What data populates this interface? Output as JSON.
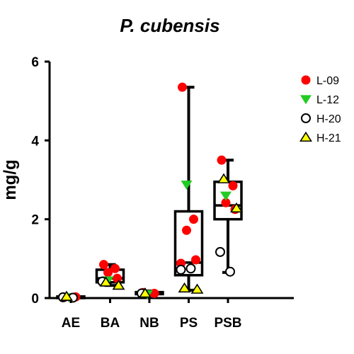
{
  "chart_data": {
    "type": "scatter",
    "subtype": "box-and-scatter",
    "title": "P. cubensis",
    "xlabel": "",
    "ylabel": "mg/g",
    "ylim": [
      0,
      6
    ],
    "yticks": [
      0,
      2,
      4,
      6
    ],
    "categories": [
      "AE",
      "BA",
      "NB",
      "PS",
      "PSB"
    ],
    "legend_position": "right",
    "grid": false,
    "colors": {
      "L-09": "#ff0000",
      "L-12": "#22cc22",
      "H-20": "#ffffff",
      "H-21": "#ffff00"
    },
    "boxes": [
      {
        "category": "AE",
        "min": 0.0,
        "q1": 0.0,
        "median": 0.02,
        "q3": 0.04,
        "max": 0.06
      },
      {
        "category": "BA",
        "min": 0.32,
        "q1": 0.4,
        "median": 0.5,
        "q3": 0.72,
        "max": 0.85
      },
      {
        "category": "NB",
        "min": 0.08,
        "q1": 0.1,
        "median": 0.12,
        "q3": 0.15,
        "max": 0.18
      },
      {
        "category": "PS",
        "min": 0.2,
        "q1": 0.58,
        "median": 0.9,
        "q3": 2.2,
        "max": 5.35
      },
      {
        "category": "PSB",
        "min": 0.65,
        "q1": 2.0,
        "median": 2.35,
        "q3": 2.95,
        "max": 3.5
      }
    ],
    "series": [
      {
        "name": "L-09",
        "marker": "circle",
        "points": [
          {
            "x": "AE",
            "y": 0.02
          },
          {
            "x": "AE",
            "y": 0.03
          },
          {
            "x": "BA",
            "y": 0.85
          },
          {
            "x": "BA",
            "y": 0.75
          },
          {
            "x": "BA",
            "y": 0.65
          },
          {
            "x": "BA",
            "y": 0.5
          },
          {
            "x": "NB",
            "y": 0.14
          },
          {
            "x": "NB",
            "y": 0.12
          },
          {
            "x": "PS",
            "y": 5.35
          },
          {
            "x": "PS",
            "y": 2.0
          },
          {
            "x": "PS",
            "y": 1.72
          },
          {
            "x": "PS",
            "y": 0.97
          },
          {
            "x": "PS",
            "y": 0.88
          },
          {
            "x": "PSB",
            "y": 3.5
          },
          {
            "x": "PSB",
            "y": 2.85
          },
          {
            "x": "PSB",
            "y": 2.42
          },
          {
            "x": "PSB",
            "y": 2.25
          }
        ]
      },
      {
        "name": "L-12",
        "marker": "triangle-down",
        "points": [
          {
            "x": "AE",
            "y": 0.02
          },
          {
            "x": "BA",
            "y": 0.45
          },
          {
            "x": "NB",
            "y": 0.1
          },
          {
            "x": "PS",
            "y": 2.88
          },
          {
            "x": "PSB",
            "y": 2.6
          }
        ]
      },
      {
        "name": "H-20",
        "marker": "circle-open",
        "points": [
          {
            "x": "AE",
            "y": 0.02
          },
          {
            "x": "AE",
            "y": 0.01
          },
          {
            "x": "BA",
            "y": 0.42
          },
          {
            "x": "NB",
            "y": 0.12
          },
          {
            "x": "PS",
            "y": 0.72
          },
          {
            "x": "PS",
            "y": 0.75
          },
          {
            "x": "PSB",
            "y": 1.17
          },
          {
            "x": "PSB",
            "y": 0.67
          }
        ]
      },
      {
        "name": "H-21",
        "marker": "triangle-up",
        "points": [
          {
            "x": "AE",
            "y": 0.04
          },
          {
            "x": "BA",
            "y": 0.4
          },
          {
            "x": "BA",
            "y": 0.32
          },
          {
            "x": "NB",
            "y": 0.12
          },
          {
            "x": "PS",
            "y": 0.25
          },
          {
            "x": "PS",
            "y": 0.22
          },
          {
            "x": "PSB",
            "y": 3.02
          },
          {
            "x": "PSB",
            "y": 2.28
          }
        ]
      }
    ]
  }
}
